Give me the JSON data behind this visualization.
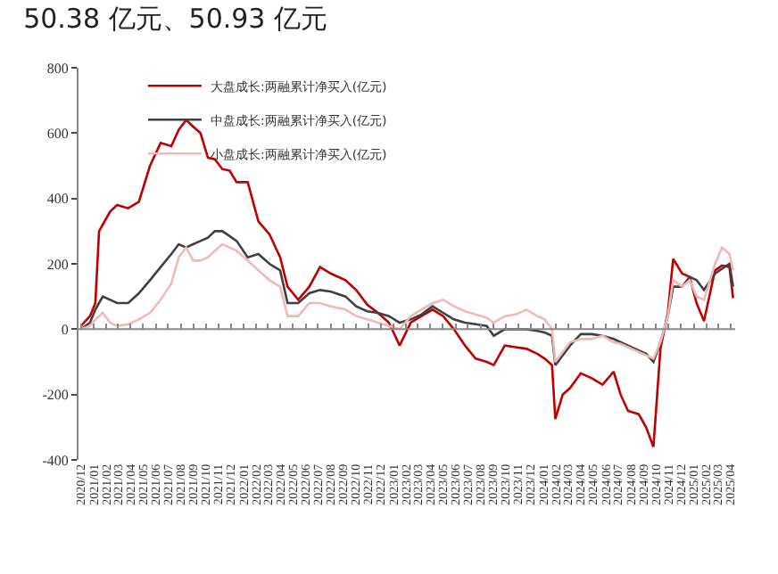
{
  "chart_data": {
    "type": "line",
    "title": "50.38 亿元、50.93 亿元",
    "legend": "top",
    "line_style": "solid",
    "marker": "none",
    "x": [
      "2020-12-01",
      "2020-12-23",
      "2021-01-05",
      "2021-01-14",
      "2021-01-23",
      "2021-02-10",
      "2021-02-27",
      "2021-03-26",
      "2021-04-21",
      "2021-05-18",
      "2021-06-13",
      "2021-07-09",
      "2021-07-27",
      "2021-08-14",
      "2021-08-31",
      "2021-09-18",
      "2021-10-06",
      "2021-10-23",
      "2021-11-10",
      "2021-11-28",
      "2021-12-15",
      "2022-01-11",
      "2022-02-06",
      "2022-03-05",
      "2022-03-31",
      "2022-04-18",
      "2022-05-14",
      "2022-06-10",
      "2022-07-06",
      "2022-08-02",
      "2022-09-06",
      "2022-10-02",
      "2022-10-29",
      "2022-11-24",
      "2022-12-21",
      "2023-01-16",
      "2023-02-12",
      "2023-03-10",
      "2023-04-06",
      "2023-05-02",
      "2023-05-28",
      "2023-06-24",
      "2023-07-20",
      "2023-08-16",
      "2023-09-02",
      "2023-09-29",
      "2023-10-25",
      "2023-11-21",
      "2023-12-17",
      "2024-01-04",
      "2024-01-22",
      "2024-01-30",
      "2024-02-17",
      "2024-03-06",
      "2024-04-01",
      "2024-04-28",
      "2024-05-24",
      "2024-06-20",
      "2024-07-07",
      "2024-07-25",
      "2024-08-20",
      "2024-09-07",
      "2024-09-25",
      "2024-10-12",
      "2024-10-30",
      "2024-11-12",
      "2024-12-04",
      "2024-12-22",
      "2025-01-08",
      "2025-01-26",
      "2025-02-22",
      "2025-03-11",
      "2025-03-29",
      "2025-04-07"
    ],
    "series": [
      {
        "name": "大盘成长:两融累计净买入(亿元)",
        "color": "#c00000",
        "values": [
          10,
          40,
          80,
          300,
          320,
          360,
          380,
          370,
          390,
          500,
          570,
          560,
          610,
          640,
          620,
          600,
          525,
          520,
          490,
          485,
          450,
          450,
          330,
          290,
          220,
          130,
          90,
          130,
          190,
          170,
          150,
          120,
          75,
          50,
          20,
          -50,
          20,
          40,
          60,
          40,
          0,
          -50,
          -90,
          -100,
          -110,
          -50,
          -55,
          -60,
          -75,
          -90,
          -110,
          -275,
          -200,
          -180,
          -135,
          -150,
          -170,
          -130,
          -200,
          -250,
          -260,
          -300,
          -360,
          -60,
          50,
          215,
          170,
          160,
          80,
          25,
          180,
          195,
          190,
          95
        ]
      },
      {
        "name": "中盘成长:两融累计净买入(亿元)",
        "color": "#404040",
        "values": [
          0,
          20,
          60,
          80,
          100,
          90,
          80,
          80,
          110,
          150,
          190,
          230,
          260,
          250,
          260,
          270,
          280,
          300,
          300,
          285,
          270,
          220,
          230,
          200,
          180,
          80,
          80,
          110,
          120,
          115,
          100,
          70,
          55,
          50,
          40,
          20,
          30,
          45,
          70,
          50,
          30,
          20,
          15,
          10,
          -20,
          0,
          0,
          0,
          -5,
          -10,
          -20,
          -110,
          -80,
          -50,
          -15,
          -15,
          -20,
          -30,
          -40,
          -50,
          -65,
          -75,
          -100,
          -40,
          40,
          130,
          130,
          160,
          150,
          120,
          170,
          185,
          200,
          130
        ]
      },
      {
        "name": "小盘成长:两融累计净买入(亿元)",
        "color": "#f2b8b8",
        "values": [
          0,
          10,
          30,
          40,
          50,
          20,
          10,
          15,
          30,
          50,
          90,
          140,
          220,
          250,
          210,
          210,
          220,
          240,
          260,
          250,
          240,
          210,
          180,
          150,
          130,
          40,
          40,
          80,
          80,
          70,
          60,
          40,
          30,
          20,
          10,
          0,
          40,
          60,
          80,
          90,
          70,
          55,
          45,
          35,
          20,
          40,
          45,
          60,
          40,
          30,
          0,
          -100,
          -70,
          -40,
          -30,
          -30,
          -20,
          -40,
          -45,
          -55,
          -70,
          -80,
          -90,
          -40,
          40,
          150,
          130,
          150,
          100,
          90,
          200,
          250,
          230,
          180
        ]
      }
    ],
    "ref_lines": [
      {
        "axis": "y",
        "value": 0,
        "color": "#888888",
        "line_style": "solid"
      }
    ],
    "ylim": [
      -400,
      800
    ],
    "yticks": [
      -400,
      -200,
      0,
      200,
      400,
      600,
      800
    ],
    "xlim": [
      "2020-11-25",
      "2025-04-12"
    ],
    "xticks": [
      {
        "value": "2020-12-01",
        "label": "2020/12"
      },
      {
        "value": "2021-01-01",
        "label": "2021/01"
      },
      {
        "value": "2021-02-01",
        "label": "2021/02"
      },
      {
        "value": "2021-03-01",
        "label": "2021/03"
      },
      {
        "value": "2021-04-01",
        "label": "2021/04"
      },
      {
        "value": "2021-05-01",
        "label": "2021/05"
      },
      {
        "value": "2021-06-01",
        "label": "2021/06"
      },
      {
        "value": "2021-07-01",
        "label": "2021/07"
      },
      {
        "value": "2021-08-01",
        "label": "2021/08"
      },
      {
        "value": "2021-09-01",
        "label": "2021/09"
      },
      {
        "value": "2021-10-01",
        "label": "2021/10"
      },
      {
        "value": "2021-11-01",
        "label": "2021/11"
      },
      {
        "value": "2021-12-01",
        "label": "2021/12"
      },
      {
        "value": "2022-01-01",
        "label": "2022/01"
      },
      {
        "value": "2022-02-01",
        "label": "2022/02"
      },
      {
        "value": "2022-03-01",
        "label": "2022/03"
      },
      {
        "value": "2022-04-01",
        "label": "2022/04"
      },
      {
        "value": "2022-05-01",
        "label": "2022/05"
      },
      {
        "value": "2022-06-01",
        "label": "2022/06"
      },
      {
        "value": "2022-07-01",
        "label": "2022/07"
      },
      {
        "value": "2022-08-01",
        "label": "2022/08"
      },
      {
        "value": "2022-09-01",
        "label": "2022/09"
      },
      {
        "value": "2022-10-01",
        "label": "2022/10"
      },
      {
        "value": "2022-11-01",
        "label": "2022/11"
      },
      {
        "value": "2022-12-01",
        "label": "2022/12"
      },
      {
        "value": "2023-01-01",
        "label": "2023/01"
      },
      {
        "value": "2023-02-01",
        "label": "2023/02"
      },
      {
        "value": "2023-03-01",
        "label": "2023/03"
      },
      {
        "value": "2023-04-01",
        "label": "2023/04"
      },
      {
        "value": "2023-05-01",
        "label": "2023/05"
      },
      {
        "value": "2023-06-01",
        "label": "2023/06"
      },
      {
        "value": "2023-07-01",
        "label": "2023/07"
      },
      {
        "value": "2023-08-01",
        "label": "2023/08"
      },
      {
        "value": "2023-09-01",
        "label": "2023/09"
      },
      {
        "value": "2023-10-01",
        "label": "2023/10"
      },
      {
        "value": "2023-11-01",
        "label": "2023/11"
      },
      {
        "value": "2023-12-01",
        "label": "2023/12"
      },
      {
        "value": "2024-01-01",
        "label": "2024/01"
      },
      {
        "value": "2024-02-01",
        "label": "2024/02"
      },
      {
        "value": "2024-03-01",
        "label": "2024/03"
      },
      {
        "value": "2024-04-01",
        "label": "2024/04"
      },
      {
        "value": "2024-05-01",
        "label": "2024/05"
      },
      {
        "value": "2024-06-01",
        "label": "2024/06"
      },
      {
        "value": "2024-07-01",
        "label": "2024/07"
      },
      {
        "value": "2024-08-01",
        "label": "2024/08"
      },
      {
        "value": "2024-09-01",
        "label": "2024/09"
      },
      {
        "value": "2024-10-01",
        "label": "2024/10"
      },
      {
        "value": "2024-11-01",
        "label": "2024/11"
      },
      {
        "value": "2024-12-01",
        "label": "2024/12"
      },
      {
        "value": "2025-01-01",
        "label": "2025/01"
      },
      {
        "value": "2025-02-01",
        "label": "2025/02"
      },
      {
        "value": "2025-03-01",
        "label": "2025/03"
      },
      {
        "value": "2025-04-01",
        "label": "2025/04"
      }
    ]
  }
}
